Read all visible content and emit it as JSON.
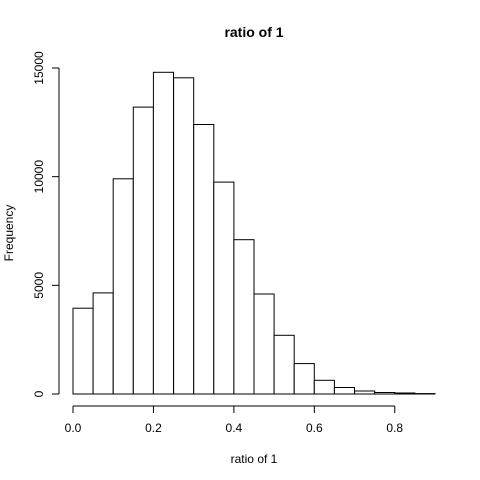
{
  "chart_data": {
    "type": "bar",
    "title": "ratio of 1",
    "xlabel": "ratio of 1",
    "ylabel": "Frequency",
    "bins": [
      {
        "start": 0.0,
        "end": 0.05,
        "count": 3950
      },
      {
        "start": 0.05,
        "end": 0.1,
        "count": 4650
      },
      {
        "start": 0.1,
        "end": 0.15,
        "count": 9900
      },
      {
        "start": 0.15,
        "end": 0.2,
        "count": 13200
      },
      {
        "start": 0.2,
        "end": 0.25,
        "count": 14800
      },
      {
        "start": 0.25,
        "end": 0.3,
        "count": 14550
      },
      {
        "start": 0.3,
        "end": 0.35,
        "count": 12400
      },
      {
        "start": 0.35,
        "end": 0.4,
        "count": 9750
      },
      {
        "start": 0.4,
        "end": 0.45,
        "count": 7100
      },
      {
        "start": 0.45,
        "end": 0.5,
        "count": 4600
      },
      {
        "start": 0.5,
        "end": 0.55,
        "count": 2700
      },
      {
        "start": 0.55,
        "end": 0.6,
        "count": 1400
      },
      {
        "start": 0.6,
        "end": 0.65,
        "count": 630
      },
      {
        "start": 0.65,
        "end": 0.7,
        "count": 300
      },
      {
        "start": 0.7,
        "end": 0.75,
        "count": 140
      },
      {
        "start": 0.75,
        "end": 0.8,
        "count": 70
      },
      {
        "start": 0.8,
        "end": 0.85,
        "count": 45
      },
      {
        "start": 0.85,
        "end": 0.9,
        "count": 20
      }
    ],
    "xlim": [
      0,
      0.9
    ],
    "ylim": [
      0,
      15000
    ],
    "xticks": [
      0.0,
      0.2,
      0.4,
      0.6,
      0.8
    ],
    "xtick_labels": [
      "0.0",
      "0.2",
      "0.4",
      "0.6",
      "0.8"
    ],
    "yticks": [
      0,
      5000,
      10000,
      15000
    ],
    "ytick_labels": [
      "0",
      "5000",
      "10000",
      "15000"
    ],
    "grid": false,
    "colors": {
      "bar_fill": "#ffffff",
      "bar_stroke": "#000000"
    }
  }
}
